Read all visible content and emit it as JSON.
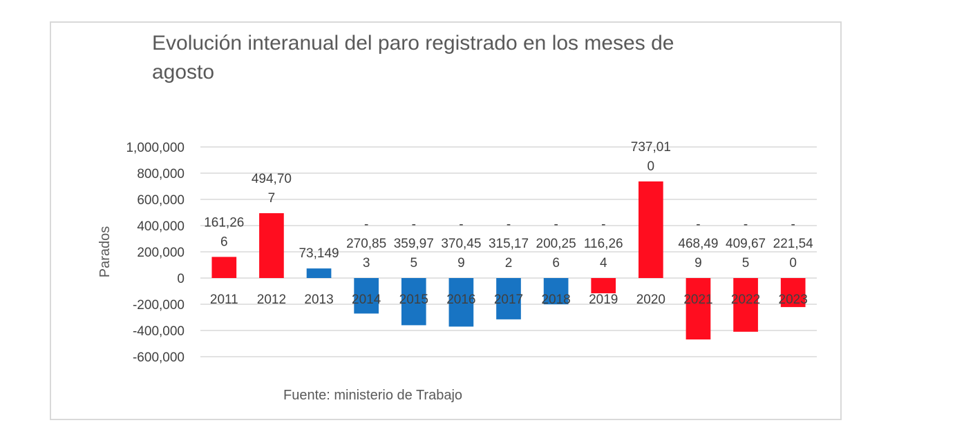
{
  "chart_data": {
    "type": "bar",
    "title": "Evolución interanual del paro registrado en los meses de agosto",
    "y_label": "Parados",
    "source": "Fuente: ministerio de Trabajo",
    "categories": [
      "2011",
      "2012",
      "2013",
      "2014",
      "2015",
      "2016",
      "2017",
      "2018",
      "2019",
      "2020",
      "2021",
      "2022",
      "2023"
    ],
    "values": [
      161266,
      494707,
      73149,
      -270853,
      -359975,
      -370459,
      -315172,
      -200256,
      -116264,
      737010,
      -468499,
      -409675,
      -221540
    ],
    "value_labels": [
      "161,266",
      "494,707",
      "73,149",
      "-270,853",
      "-359,975",
      "-370,459",
      "-315,172",
      "-200,256",
      "-116,264",
      "737,010",
      "-468,499",
      "-409,675",
      "-221,540"
    ],
    "colors": [
      "#ff0d1f",
      "#ff0d1f",
      "#1874c3",
      "#1874c3",
      "#1874c3",
      "#1874c3",
      "#1874c3",
      "#1874c3",
      "#ff0d1f",
      "#ff0d1f",
      "#ff0d1f",
      "#ff0d1f",
      "#ff0d1f"
    ],
    "ylim": [
      -600000,
      1000000
    ],
    "yticks": [
      {
        "value": -600000,
        "label": "-600,000"
      },
      {
        "value": -400000,
        "label": "-400,000"
      },
      {
        "value": -200000,
        "label": "-200,000"
      },
      0,
      {
        "value": 200000,
        "label": "200,000"
      },
      {
        "value": 400000,
        "label": "400,000"
      },
      {
        "value": 600000,
        "label": "600,000"
      },
      {
        "value": 800000,
        "label": "800,000"
      },
      {
        "value": 1000000,
        "label": "1,000,000"
      }
    ],
    "grid": true
  }
}
